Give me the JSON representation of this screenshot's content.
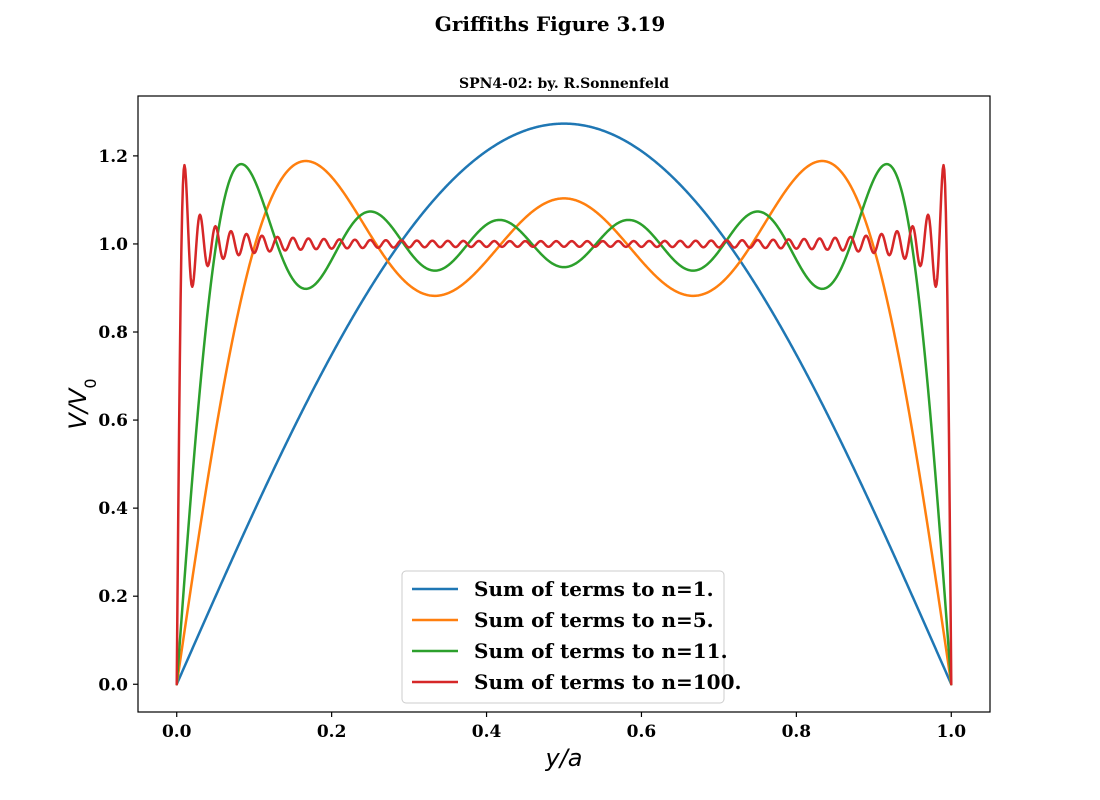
{
  "suptitle": "Griffiths Figure 3.19",
  "chart_data": {
    "type": "line",
    "title": "SPN4-02: by. R.Sonnenfeld",
    "xlabel": "y/a",
    "ylabel": "V/V0",
    "xlim": [
      -0.05,
      1.05
    ],
    "ylim": [
      -0.063,
      1.336
    ],
    "xticks": [
      0.0,
      0.2,
      0.4,
      0.6,
      0.8,
      1.0
    ],
    "xtick_labels": [
      "0.0",
      "0.2",
      "0.4",
      "0.6",
      "0.8",
      "1.0"
    ],
    "yticks": [
      0.0,
      0.2,
      0.4,
      0.6,
      0.8,
      1.0,
      1.2
    ],
    "ytick_labels": [
      "0.0",
      "0.2",
      "0.4",
      "0.6",
      "0.8",
      "1.0",
      "1.2"
    ],
    "grid": false,
    "legend_position": "lower center",
    "function": "V/V0 = (4/pi) * sum over odd n of sin(n*pi*y/a)/n",
    "x_samples": {
      "start": 0.0,
      "stop": 1.0,
      "count": 1001
    },
    "series": [
      {
        "name": "Sum of  terms to n=1.",
        "n_max": 1,
        "color": "#1f77b4",
        "key_points": [
          [
            0.0,
            0.0
          ],
          [
            0.25,
            0.9003
          ],
          [
            0.5,
            1.2732
          ],
          [
            0.75,
            0.9003
          ],
          [
            1.0,
            0.0
          ]
        ]
      },
      {
        "name": "Sum of  terms to n=5.",
        "n_max": 5,
        "color": "#ff7f0e",
        "key_points": [
          [
            0.0,
            0.0
          ],
          [
            0.1667,
            1.1879
          ],
          [
            0.3333,
            0.8822
          ],
          [
            0.5,
            1.1033
          ],
          [
            0.6667,
            0.8822
          ],
          [
            0.8333,
            1.1879
          ],
          [
            1.0,
            0.0
          ]
        ]
      },
      {
        "name": "Sum of  terms to n=11.",
        "n_max": 11,
        "color": "#2ca02c",
        "key_points": [
          [
            0.0,
            0.0
          ],
          [
            0.0833,
            1.1816
          ],
          [
            0.1667,
            0.8993
          ],
          [
            0.25,
            1.0737
          ],
          [
            0.3333,
            0.9401
          ],
          [
            0.4167,
            1.0554
          ],
          [
            0.5,
            0.9497
          ],
          [
            1.0,
            0.0
          ]
        ]
      },
      {
        "name": "Sum of  terms to n=100.",
        "n_max": 100,
        "color": "#d62728",
        "key_points": [
          [
            0.0,
            0.0
          ],
          [
            0.0099,
            1.179
          ],
          [
            0.0198,
            0.904
          ],
          [
            0.0297,
            1.066
          ],
          [
            0.5,
            1.0
          ],
          [
            0.9901,
            1.179
          ],
          [
            1.0,
            0.0
          ]
        ]
      }
    ]
  }
}
